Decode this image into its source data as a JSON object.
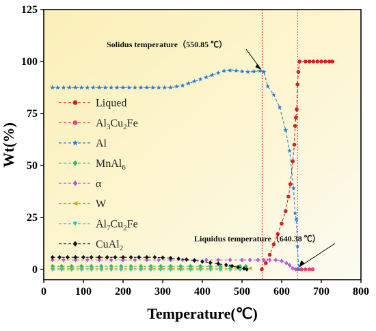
{
  "chart_data": {
    "type": "line",
    "xlabel": "Temperature(℃)",
    "ylabel": "Wt(%)",
    "xlim": [
      0,
      800
    ],
    "ylim": [
      -5,
      125
    ],
    "xticks": [
      0,
      100,
      200,
      300,
      400,
      500,
      600,
      700,
      800
    ],
    "yticks": [
      0,
      25,
      50,
      75,
      100,
      125
    ],
    "grid": false,
    "legend_position": "left",
    "annotations": [
      {
        "text": "Solidus temperature（550.85 ℃）",
        "x": 550.85,
        "y": 95
      },
      {
        "text": "Liquidus temperature（640.38 ℃）",
        "x": 640.38,
        "y": 0
      }
    ],
    "vlines": [
      {
        "x": 550.85,
        "color": "#e03030"
      },
      {
        "x": 640.38,
        "color": "#cc66cc"
      }
    ],
    "series": [
      {
        "name": "Liqued",
        "color": "#d42020",
        "marker": "circle",
        "points": [
          [
            550,
            0
          ],
          [
            560,
            3
          ],
          [
            570,
            7
          ],
          [
            580,
            12
          ],
          [
            590,
            17
          ],
          [
            600,
            22
          ],
          [
            610,
            28
          ],
          [
            617,
            35
          ],
          [
            622,
            41
          ],
          [
            628,
            52
          ],
          [
            632,
            60
          ],
          [
            634,
            69
          ],
          [
            636,
            73
          ],
          [
            638,
            77
          ],
          [
            640,
            89
          ],
          [
            642,
            95
          ],
          [
            645,
            100
          ],
          [
            660,
            100
          ],
          [
            670,
            100
          ],
          [
            680,
            100
          ],
          [
            690,
            100
          ],
          [
            700,
            100
          ],
          [
            710,
            100
          ],
          [
            720,
            100
          ],
          [
            728,
            100
          ]
        ]
      },
      {
        "name": "Al3Cu2Fe",
        "label_parts": [
          "Al",
          "3",
          "Cu",
          "2",
          "Fe"
        ],
        "color": "#e8407a",
        "marker": "circle",
        "points": [
          [
            640,
            0
          ],
          [
            650,
            0
          ],
          [
            660,
            0
          ],
          [
            670,
            0
          ],
          [
            678,
            0
          ]
        ]
      },
      {
        "name": "Al",
        "color": "#2a7bd8",
        "marker": "star",
        "points": [
          [
            22,
            87.5
          ],
          [
            35,
            87.5
          ],
          [
            50,
            87.5
          ],
          [
            65,
            87.5
          ],
          [
            80,
            87.5
          ],
          [
            95,
            87.5
          ],
          [
            110,
            87.5
          ],
          [
            125,
            87.5
          ],
          [
            140,
            87.5
          ],
          [
            155,
            87.5
          ],
          [
            170,
            87.5
          ],
          [
            185,
            87.5
          ],
          [
            200,
            87.5
          ],
          [
            215,
            87.5
          ],
          [
            230,
            87.5
          ],
          [
            245,
            87.5
          ],
          [
            260,
            87.5
          ],
          [
            275,
            87.5
          ],
          [
            290,
            87.5
          ],
          [
            305,
            87.5
          ],
          [
            320,
            87.5
          ],
          [
            335,
            88
          ],
          [
            350,
            88.5
          ],
          [
            365,
            89.5
          ],
          [
            380,
            90.5
          ],
          [
            395,
            91.5
          ],
          [
            410,
            92.5
          ],
          [
            425,
            93.5
          ],
          [
            440,
            94.5
          ],
          [
            455,
            95.5
          ],
          [
            470,
            95.8
          ],
          [
            485,
            95.6
          ],
          [
            500,
            95.2
          ],
          [
            515,
            95
          ],
          [
            530,
            95.2
          ],
          [
            545,
            95.5
          ],
          [
            555,
            95
          ],
          [
            565,
            88
          ],
          [
            580,
            84
          ],
          [
            595,
            78
          ],
          [
            610,
            67
          ],
          [
            620,
            57
          ],
          [
            630,
            39
          ],
          [
            634,
            27
          ],
          [
            637,
            24
          ],
          [
            640,
            11
          ],
          [
            643,
            0
          ]
        ]
      },
      {
        "name": "MnAl6",
        "label_parts": [
          "MnAl",
          "6"
        ],
        "color": "#20c060",
        "marker": "diamond",
        "points": [
          [
            22,
            1.5
          ],
          [
            45,
            1.5
          ],
          [
            70,
            1.5
          ],
          [
            95,
            1.5
          ],
          [
            120,
            1.5
          ],
          [
            145,
            1.5
          ],
          [
            170,
            1.5
          ],
          [
            195,
            1.5
          ],
          [
            220,
            1.5
          ],
          [
            245,
            1.5
          ],
          [
            270,
            1.5
          ],
          [
            295,
            1.5
          ],
          [
            320,
            1.5
          ],
          [
            345,
            1.5
          ],
          [
            370,
            1.5
          ],
          [
            395,
            1.5
          ],
          [
            420,
            1.5
          ],
          [
            445,
            1.5
          ],
          [
            470,
            1.5
          ],
          [
            495,
            1.5
          ],
          [
            510,
            1.5
          ]
        ]
      },
      {
        "name": "α",
        "color": "#b35ad6",
        "marker": "diamond",
        "points": [
          [
            22,
            4.5
          ],
          [
            50,
            4.5
          ],
          [
            80,
            4.5
          ],
          [
            110,
            4.5
          ],
          [
            140,
            4.5
          ],
          [
            170,
            4.5
          ],
          [
            200,
            4.5
          ],
          [
            230,
            4.5
          ],
          [
            260,
            4.5
          ],
          [
            290,
            4.5
          ],
          [
            320,
            4.5
          ],
          [
            350,
            4.5
          ],
          [
            380,
            4.5
          ],
          [
            410,
            4.5
          ],
          [
            440,
            4.5
          ],
          [
            470,
            4.5
          ],
          [
            500,
            4.5
          ],
          [
            520,
            4.5
          ],
          [
            540,
            4.5
          ],
          [
            555,
            4.5
          ],
          [
            570,
            4.5
          ],
          [
            585,
            4.5
          ],
          [
            600,
            4
          ],
          [
            612,
            3
          ],
          [
            620,
            2
          ],
          [
            628,
            0.5
          ],
          [
            635,
            0
          ]
        ]
      },
      {
        "name": "W",
        "color": "#d4a020",
        "marker": "triangle-left",
        "points": [
          [
            22,
            0.5
          ],
          [
            45,
            0.5
          ],
          [
            70,
            0.5
          ],
          [
            95,
            0.5
          ],
          [
            120,
            0.5
          ],
          [
            145,
            0.5
          ],
          [
            170,
            0.5
          ],
          [
            195,
            0.5
          ],
          [
            220,
            0.5
          ],
          [
            245,
            0.5
          ],
          [
            270,
            0.5
          ],
          [
            295,
            0.5
          ],
          [
            320,
            0.5
          ],
          [
            345,
            0.5
          ],
          [
            370,
            0.5
          ],
          [
            395,
            0.5
          ],
          [
            420,
            0.5
          ],
          [
            445,
            0.5
          ],
          [
            470,
            0.5
          ],
          [
            495,
            0.5
          ],
          [
            520,
            0.5
          ]
        ]
      },
      {
        "name": "Al7Cu2Fe",
        "label_parts": [
          "Al",
          "7",
          "Cu",
          "2",
          "Fe"
        ],
        "color": "#20c8c8",
        "marker": "triangle-down",
        "points": [
          [
            22,
            -0.3
          ],
          [
            45,
            -0.3
          ],
          [
            70,
            -0.3
          ],
          [
            95,
            -0.3
          ],
          [
            120,
            -0.3
          ],
          [
            145,
            -0.3
          ],
          [
            170,
            -0.3
          ],
          [
            195,
            -0.3
          ],
          [
            220,
            -0.3
          ],
          [
            245,
            -0.3
          ],
          [
            270,
            -0.3
          ],
          [
            295,
            -0.3
          ],
          [
            320,
            -0.3
          ],
          [
            345,
            -0.3
          ],
          [
            370,
            -0.3
          ],
          [
            395,
            -0.3
          ],
          [
            420,
            -0.3
          ],
          [
            445,
            -0.3
          ],
          [
            470,
            -0.3
          ],
          [
            495,
            -0.3
          ]
        ]
      },
      {
        "name": "CuAl2",
        "label_parts": [
          "CuAl",
          "2"
        ],
        "color": "#111111",
        "marker": "diamond",
        "points": [
          [
            22,
            5.8
          ],
          [
            40,
            5.8
          ],
          [
            60,
            5.8
          ],
          [
            80,
            5.8
          ],
          [
            100,
            5.8
          ],
          [
            120,
            5.8
          ],
          [
            140,
            5.8
          ],
          [
            160,
            5.8
          ],
          [
            180,
            5.8
          ],
          [
            200,
            5.8
          ],
          [
            220,
            5.8
          ],
          [
            240,
            5.8
          ],
          [
            260,
            5.8
          ],
          [
            280,
            5.8
          ],
          [
            300,
            5.6
          ],
          [
            320,
            5.4
          ],
          [
            340,
            5.1
          ],
          [
            360,
            4.7
          ],
          [
            380,
            4.2
          ],
          [
            400,
            3.7
          ],
          [
            420,
            3.2
          ],
          [
            440,
            2.7
          ],
          [
            460,
            2.1
          ],
          [
            475,
            1.6
          ],
          [
            490,
            1
          ],
          [
            505,
            0.4
          ],
          [
            512,
            0
          ]
        ]
      }
    ]
  }
}
